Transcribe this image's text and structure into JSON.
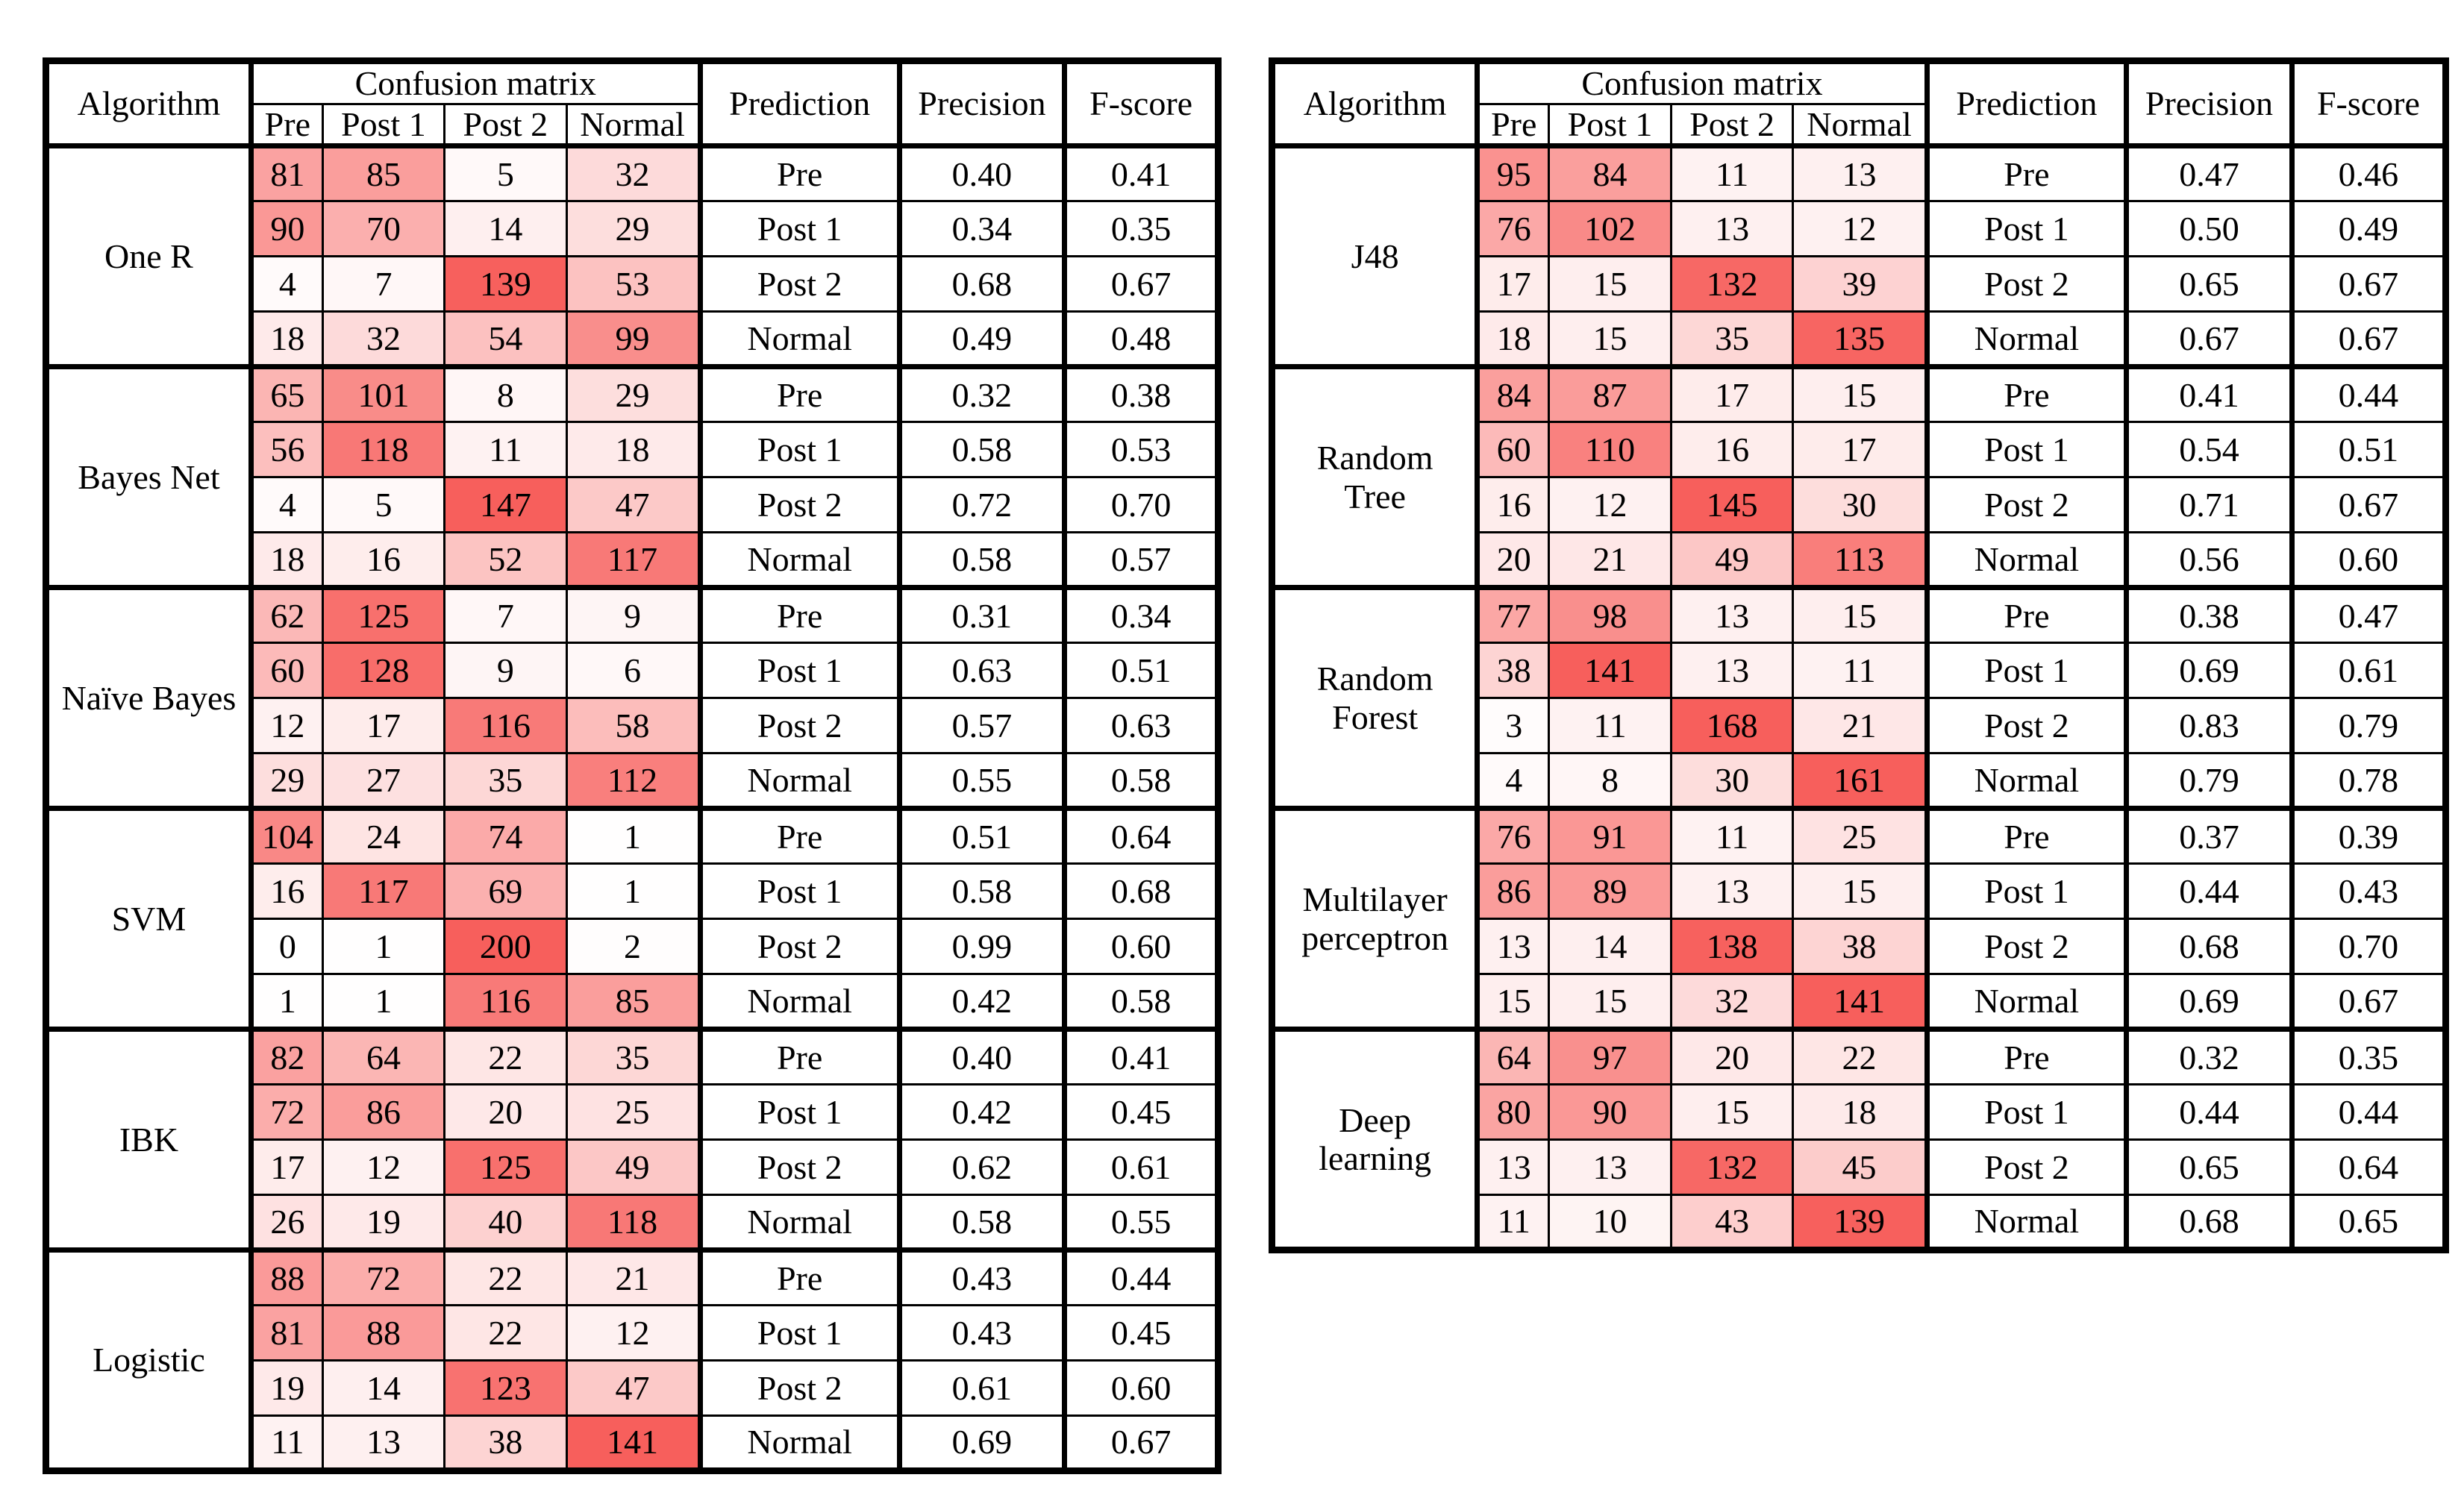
{
  "header": {
    "algorithm": "Algorithm",
    "confusion_matrix": "Confusion matrix",
    "cm_cols": [
      "Pre",
      "Post 1",
      "Post 2",
      "Normal"
    ],
    "prediction": "Prediction",
    "precision": "Precision",
    "fscore": "F-score"
  },
  "heatmap": {
    "min_color": "#FFFFFF",
    "max_color": "#F75F5C",
    "scale_max": 140
  },
  "chart_data": {
    "type": "table",
    "note": "Confusion matrices with precision and F-score per prediction class for each algorithm"
  },
  "tables": [
    {
      "id": "left",
      "algorithms": [
        {
          "name_lines": [
            "One R"
          ],
          "rows": [
            {
              "cm": [
                81,
                85,
                5,
                32
              ],
              "prediction": "Pre",
              "precision": "0.40",
              "fscore": "0.41"
            },
            {
              "cm": [
                90,
                70,
                14,
                29
              ],
              "prediction": "Post 1",
              "precision": "0.34",
              "fscore": "0.35"
            },
            {
              "cm": [
                4,
                7,
                139,
                53
              ],
              "prediction": "Post 2",
              "precision": "0.68",
              "fscore": "0.67"
            },
            {
              "cm": [
                18,
                32,
                54,
                99
              ],
              "prediction": "Normal",
              "precision": "0.49",
              "fscore": "0.48"
            }
          ]
        },
        {
          "name_lines": [
            "Bayes Net"
          ],
          "rows": [
            {
              "cm": [
                65,
                101,
                8,
                29
              ],
              "prediction": "Pre",
              "precision": "0.32",
              "fscore": "0.38"
            },
            {
              "cm": [
                56,
                118,
                11,
                18
              ],
              "prediction": "Post 1",
              "precision": "0.58",
              "fscore": "0.53"
            },
            {
              "cm": [
                4,
                5,
                147,
                47
              ],
              "prediction": "Post 2",
              "precision": "0.72",
              "fscore": "0.70"
            },
            {
              "cm": [
                18,
                16,
                52,
                117
              ],
              "prediction": "Normal",
              "precision": "0.58",
              "fscore": "0.57"
            }
          ]
        },
        {
          "name_lines": [
            "Naïve Bayes"
          ],
          "rows": [
            {
              "cm": [
                62,
                125,
                7,
                9
              ],
              "prediction": "Pre",
              "precision": "0.31",
              "fscore": "0.34"
            },
            {
              "cm": [
                60,
                128,
                9,
                6
              ],
              "prediction": "Post 1",
              "precision": "0.63",
              "fscore": "0.51"
            },
            {
              "cm": [
                12,
                17,
                116,
                58
              ],
              "prediction": "Post 2",
              "precision": "0.57",
              "fscore": "0.63"
            },
            {
              "cm": [
                29,
                27,
                35,
                112
              ],
              "prediction": "Normal",
              "precision": "0.55",
              "fscore": "0.58"
            }
          ]
        },
        {
          "name_lines": [
            "SVM"
          ],
          "rows": [
            {
              "cm": [
                104,
                24,
                74,
                1
              ],
              "prediction": "Pre",
              "precision": "0.51",
              "fscore": "0.64"
            },
            {
              "cm": [
                16,
                117,
                69,
                1
              ],
              "prediction": "Post 1",
              "precision": "0.58",
              "fscore": "0.68"
            },
            {
              "cm": [
                0,
                1,
                200,
                2
              ],
              "prediction": "Post 2",
              "precision": "0.99",
              "fscore": "0.60"
            },
            {
              "cm": [
                1,
                1,
                116,
                85
              ],
              "prediction": "Normal",
              "precision": "0.42",
              "fscore": "0.58"
            }
          ]
        },
        {
          "name_lines": [
            "IBK"
          ],
          "rows": [
            {
              "cm": [
                82,
                64,
                22,
                35
              ],
              "prediction": "Pre",
              "precision": "0.40",
              "fscore": "0.41"
            },
            {
              "cm": [
                72,
                86,
                20,
                25
              ],
              "prediction": "Post 1",
              "precision": "0.42",
              "fscore": "0.45"
            },
            {
              "cm": [
                17,
                12,
                125,
                49
              ],
              "prediction": "Post 2",
              "precision": "0.62",
              "fscore": "0.61"
            },
            {
              "cm": [
                26,
                19,
                40,
                118
              ],
              "prediction": "Normal",
              "precision": "0.58",
              "fscore": "0.55"
            }
          ]
        },
        {
          "name_lines": [
            "Logistic"
          ],
          "rows": [
            {
              "cm": [
                88,
                72,
                22,
                21
              ],
              "prediction": "Pre",
              "precision": "0.43",
              "fscore": "0.44"
            },
            {
              "cm": [
                81,
                88,
                22,
                12
              ],
              "prediction": "Post 1",
              "precision": "0.43",
              "fscore": "0.45"
            },
            {
              "cm": [
                19,
                14,
                123,
                47
              ],
              "prediction": "Post 2",
              "precision": "0.61",
              "fscore": "0.60"
            },
            {
              "cm": [
                11,
                13,
                38,
                141
              ],
              "prediction": "Normal",
              "precision": "0.69",
              "fscore": "0.67"
            }
          ]
        }
      ]
    },
    {
      "id": "right",
      "algorithms": [
        {
          "name_lines": [
            "J48"
          ],
          "rows": [
            {
              "cm": [
                95,
                84,
                11,
                13
              ],
              "prediction": "Pre",
              "precision": "0.47",
              "fscore": "0.46"
            },
            {
              "cm": [
                76,
                102,
                13,
                12
              ],
              "prediction": "Post 1",
              "precision": "0.50",
              "fscore": "0.49"
            },
            {
              "cm": [
                17,
                15,
                132,
                39
              ],
              "prediction": "Post 2",
              "precision": "0.65",
              "fscore": "0.67"
            },
            {
              "cm": [
                18,
                15,
                35,
                135
              ],
              "prediction": "Normal",
              "precision": "0.67",
              "fscore": "0.67"
            }
          ]
        },
        {
          "name_lines": [
            "Random",
            "Tree"
          ],
          "rows": [
            {
              "cm": [
                84,
                87,
                17,
                15
              ],
              "prediction": "Pre",
              "precision": "0.41",
              "fscore": "0.44"
            },
            {
              "cm": [
                60,
                110,
                16,
                17
              ],
              "prediction": "Post 1",
              "precision": "0.54",
              "fscore": "0.51"
            },
            {
              "cm": [
                16,
                12,
                145,
                30
              ],
              "prediction": "Post 2",
              "precision": "0.71",
              "fscore": "0.67"
            },
            {
              "cm": [
                20,
                21,
                49,
                113
              ],
              "prediction": "Normal",
              "precision": "0.56",
              "fscore": "0.60"
            }
          ]
        },
        {
          "name_lines": [
            "Random",
            "Forest"
          ],
          "rows": [
            {
              "cm": [
                77,
                98,
                13,
                15
              ],
              "prediction": "Pre",
              "precision": "0.38",
              "fscore": "0.47"
            },
            {
              "cm": [
                38,
                141,
                13,
                11
              ],
              "prediction": "Post 1",
              "precision": "0.69",
              "fscore": "0.61"
            },
            {
              "cm": [
                3,
                11,
                168,
                21
              ],
              "prediction": "Post 2",
              "precision": "0.83",
              "fscore": "0.79"
            },
            {
              "cm": [
                4,
                8,
                30,
                161
              ],
              "prediction": "Normal",
              "precision": "0.79",
              "fscore": "0.78"
            }
          ]
        },
        {
          "name_lines": [
            "Multilayer",
            "perceptron"
          ],
          "rows": [
            {
              "cm": [
                76,
                91,
                11,
                25
              ],
              "prediction": "Pre",
              "precision": "0.37",
              "fscore": "0.39"
            },
            {
              "cm": [
                86,
                89,
                13,
                15
              ],
              "prediction": "Post 1",
              "precision": "0.44",
              "fscore": "0.43"
            },
            {
              "cm": [
                13,
                14,
                138,
                38
              ],
              "prediction": "Post 2",
              "precision": "0.68",
              "fscore": "0.70"
            },
            {
              "cm": [
                15,
                15,
                32,
                141
              ],
              "prediction": "Normal",
              "precision": "0.69",
              "fscore": "0.67"
            }
          ]
        },
        {
          "name_lines": [
            "Deep",
            "learning"
          ],
          "rows": [
            {
              "cm": [
                64,
                97,
                20,
                22
              ],
              "prediction": "Pre",
              "precision": "0.32",
              "fscore": "0.35"
            },
            {
              "cm": [
                80,
                90,
                15,
                18
              ],
              "prediction": "Post 1",
              "precision": "0.44",
              "fscore": "0.44"
            },
            {
              "cm": [
                13,
                13,
                132,
                45
              ],
              "prediction": "Post 2",
              "precision": "0.65",
              "fscore": "0.64"
            },
            {
              "cm": [
                11,
                10,
                43,
                139
              ],
              "prediction": "Normal",
              "precision": "0.68",
              "fscore": "0.65"
            }
          ]
        }
      ]
    }
  ]
}
